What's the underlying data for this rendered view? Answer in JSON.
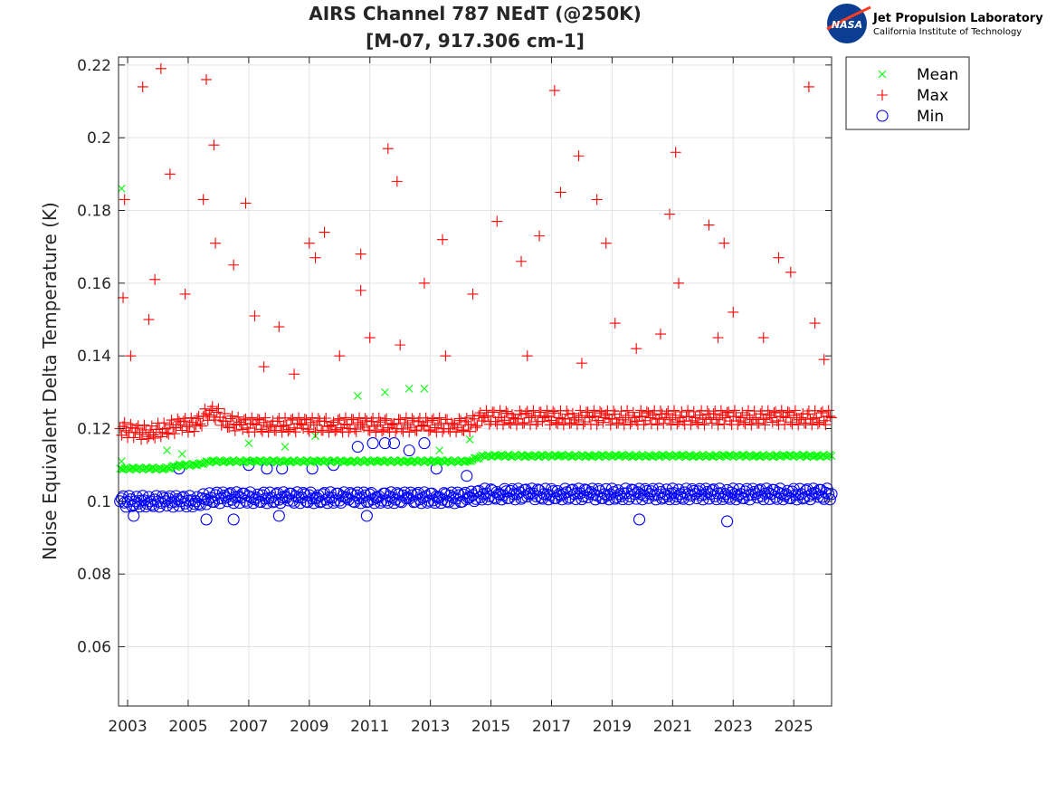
{
  "logo": {
    "org": "Jet Propulsion Laboratory",
    "sub": "California Institute of Technology",
    "badge": "NASA"
  },
  "chart_data": {
    "type": "scatter",
    "title": [
      "AIRS Channel 787 NEdT (@250K)",
      "[M-07, 917.306 cm-1]"
    ],
    "xlabel": "",
    "ylabel": "Noise Equivalent Delta Temperature (K)",
    "xlim": [
      2002.7,
      2026.25
    ],
    "ylim": [
      0.0437,
      0.2222
    ],
    "xticks": [
      2003,
      2005,
      2007,
      2009,
      2011,
      2013,
      2015,
      2017,
      2019,
      2021,
      2023,
      2025
    ],
    "yticks": [
      0.06,
      0.08,
      0.1,
      0.12,
      0.14,
      0.16,
      0.18,
      0.2,
      0.22
    ],
    "ytick_labels": [
      "0.06",
      "0.08",
      "0.1",
      "0.12",
      "0.14",
      "0.16",
      "0.18",
      "0.2",
      "0.22"
    ],
    "grid": true,
    "legend_placement": "outside-top-right",
    "series": [
      {
        "name": "Mean",
        "marker": "x",
        "color": "#00ff00",
        "points": [
          [
            2002.75,
            0.109
          ],
          [
            2003.25,
            0.109
          ],
          [
            2003.75,
            0.109
          ],
          [
            2004.25,
            0.109
          ],
          [
            2004.75,
            0.11
          ],
          [
            2005.25,
            0.11
          ],
          [
            2005.75,
            0.111
          ],
          [
            2006.25,
            0.111
          ],
          [
            2006.75,
            0.111
          ],
          [
            2007.25,
            0.111
          ],
          [
            2007.75,
            0.111
          ],
          [
            2008.25,
            0.111
          ],
          [
            2008.75,
            0.111
          ],
          [
            2009.25,
            0.111
          ],
          [
            2009.75,
            0.111
          ],
          [
            2010.25,
            0.111
          ],
          [
            2010.75,
            0.111
          ],
          [
            2011.25,
            0.111
          ],
          [
            2011.75,
            0.111
          ],
          [
            2012.25,
            0.111
          ],
          [
            2012.75,
            0.111
          ],
          [
            2013.25,
            0.111
          ],
          [
            2013.75,
            0.111
          ],
          [
            2014.25,
            0.111
          ],
          [
            2014.75,
            0.1125
          ],
          [
            2015.25,
            0.1125
          ],
          [
            2015.75,
            0.1125
          ],
          [
            2016.25,
            0.1125
          ],
          [
            2016.75,
            0.1125
          ],
          [
            2017.25,
            0.1125
          ],
          [
            2017.75,
            0.1125
          ],
          [
            2018.25,
            0.1125
          ],
          [
            2018.75,
            0.1125
          ],
          [
            2019.25,
            0.1125
          ],
          [
            2019.75,
            0.1125
          ],
          [
            2020.25,
            0.1125
          ],
          [
            2020.75,
            0.1125
          ],
          [
            2021.25,
            0.1125
          ],
          [
            2021.75,
            0.1125
          ],
          [
            2022.25,
            0.1125
          ],
          [
            2022.75,
            0.1125
          ],
          [
            2023.25,
            0.1125
          ],
          [
            2023.75,
            0.1125
          ],
          [
            2024.25,
            0.1125
          ],
          [
            2024.75,
            0.1125
          ],
          [
            2025.25,
            0.1125
          ],
          [
            2025.75,
            0.1125
          ],
          [
            2026.25,
            0.1125
          ],
          [
            2002.8,
            0.186
          ],
          [
            2002.8,
            0.111
          ],
          [
            2004.3,
            0.114
          ],
          [
            2004.8,
            0.113
          ],
          [
            2007.0,
            0.116
          ],
          [
            2008.2,
            0.115
          ],
          [
            2009.2,
            0.118
          ],
          [
            2010.6,
            0.129
          ],
          [
            2011.5,
            0.13
          ],
          [
            2012.3,
            0.131
          ],
          [
            2012.8,
            0.131
          ],
          [
            2013.3,
            0.114
          ],
          [
            2014.3,
            0.117
          ]
        ]
      },
      {
        "name": "Max",
        "marker": "+",
        "color": "#ff0000",
        "points": [
          [
            2002.75,
            0.12
          ],
          [
            2003.25,
            0.119
          ],
          [
            2003.75,
            0.119
          ],
          [
            2004.25,
            0.12
          ],
          [
            2004.75,
            0.121
          ],
          [
            2005.25,
            0.121
          ],
          [
            2005.75,
            0.125
          ],
          [
            2006.25,
            0.122
          ],
          [
            2006.75,
            0.121
          ],
          [
            2007.25,
            0.121
          ],
          [
            2007.75,
            0.121
          ],
          [
            2008.25,
            0.121
          ],
          [
            2008.75,
            0.121
          ],
          [
            2009.25,
            0.121
          ],
          [
            2009.75,
            0.121
          ],
          [
            2010.25,
            0.121
          ],
          [
            2010.75,
            0.121
          ],
          [
            2011.25,
            0.121
          ],
          [
            2011.75,
            0.121
          ],
          [
            2012.25,
            0.121
          ],
          [
            2012.75,
            0.121
          ],
          [
            2013.25,
            0.121
          ],
          [
            2013.75,
            0.121
          ],
          [
            2014.25,
            0.121
          ],
          [
            2014.75,
            0.123
          ],
          [
            2015.25,
            0.123
          ],
          [
            2015.75,
            0.123
          ],
          [
            2016.25,
            0.123
          ],
          [
            2016.75,
            0.123
          ],
          [
            2017.25,
            0.123
          ],
          [
            2017.75,
            0.123
          ],
          [
            2018.25,
            0.123
          ],
          [
            2018.75,
            0.123
          ],
          [
            2019.25,
            0.123
          ],
          [
            2019.75,
            0.123
          ],
          [
            2020.25,
            0.123
          ],
          [
            2020.75,
            0.123
          ],
          [
            2021.25,
            0.123
          ],
          [
            2021.75,
            0.123
          ],
          [
            2022.25,
            0.123
          ],
          [
            2022.75,
            0.123
          ],
          [
            2023.25,
            0.123
          ],
          [
            2023.75,
            0.123
          ],
          [
            2024.25,
            0.123
          ],
          [
            2024.75,
            0.123
          ],
          [
            2025.25,
            0.123
          ],
          [
            2025.75,
            0.123
          ],
          [
            2026.25,
            0.123
          ],
          [
            2002.85,
            0.156
          ],
          [
            2002.9,
            0.183
          ],
          [
            2003.1,
            0.14
          ],
          [
            2003.5,
            0.214
          ],
          [
            2003.7,
            0.15
          ],
          [
            2003.9,
            0.161
          ],
          [
            2004.1,
            0.219
          ],
          [
            2004.4,
            0.19
          ],
          [
            2004.9,
            0.157
          ],
          [
            2005.5,
            0.183
          ],
          [
            2005.6,
            0.216
          ],
          [
            2005.85,
            0.198
          ],
          [
            2005.9,
            0.171
          ],
          [
            2006.5,
            0.165
          ],
          [
            2006.9,
            0.182
          ],
          [
            2007.2,
            0.151
          ],
          [
            2008.0,
            0.148
          ],
          [
            2009.0,
            0.171
          ],
          [
            2009.2,
            0.167
          ],
          [
            2009.5,
            0.174
          ],
          [
            2010.7,
            0.168
          ],
          [
            2010.7,
            0.158
          ],
          [
            2011.6,
            0.197
          ],
          [
            2011.9,
            0.188
          ],
          [
            2012.8,
            0.16
          ],
          [
            2013.4,
            0.172
          ],
          [
            2014.4,
            0.157
          ],
          [
            2015.2,
            0.177
          ],
          [
            2016.0,
            0.166
          ],
          [
            2016.6,
            0.173
          ],
          [
            2017.1,
            0.213
          ],
          [
            2017.3,
            0.185
          ],
          [
            2017.9,
            0.195
          ],
          [
            2018.5,
            0.183
          ],
          [
            2018.8,
            0.171
          ],
          [
            2019.1,
            0.149
          ],
          [
            2020.9,
            0.179
          ],
          [
            2021.1,
            0.196
          ],
          [
            2021.2,
            0.16
          ],
          [
            2022.2,
            0.176
          ],
          [
            2022.7,
            0.171
          ],
          [
            2023.0,
            0.152
          ],
          [
            2024.5,
            0.167
          ],
          [
            2024.9,
            0.163
          ],
          [
            2025.5,
            0.214
          ],
          [
            2025.7,
            0.149
          ],
          [
            2026.0,
            0.139
          ],
          [
            2007.5,
            0.137
          ],
          [
            2008.5,
            0.135
          ],
          [
            2010.0,
            0.14
          ],
          [
            2011.0,
            0.145
          ],
          [
            2012.0,
            0.143
          ],
          [
            2013.5,
            0.14
          ],
          [
            2016.2,
            0.14
          ],
          [
            2018.0,
            0.138
          ],
          [
            2019.8,
            0.142
          ],
          [
            2020.6,
            0.146
          ],
          [
            2022.5,
            0.145
          ],
          [
            2024.0,
            0.145
          ]
        ]
      },
      {
        "name": "Min",
        "marker": "o",
        "color": "#0000ff",
        "points": [
          [
            2002.75,
            0.1
          ],
          [
            2003.25,
            0.1
          ],
          [
            2003.75,
            0.1
          ],
          [
            2004.25,
            0.1
          ],
          [
            2004.75,
            0.1
          ],
          [
            2005.25,
            0.1
          ],
          [
            2005.75,
            0.101
          ],
          [
            2006.25,
            0.101
          ],
          [
            2006.75,
            0.101
          ],
          [
            2007.25,
            0.101
          ],
          [
            2007.75,
            0.101
          ],
          [
            2008.25,
            0.101
          ],
          [
            2008.75,
            0.101
          ],
          [
            2009.25,
            0.101
          ],
          [
            2009.75,
            0.101
          ],
          [
            2010.25,
            0.101
          ],
          [
            2010.75,
            0.101
          ],
          [
            2011.25,
            0.101
          ],
          [
            2011.75,
            0.101
          ],
          [
            2012.25,
            0.101
          ],
          [
            2012.75,
            0.101
          ],
          [
            2013.25,
            0.101
          ],
          [
            2013.75,
            0.101
          ],
          [
            2014.25,
            0.101
          ],
          [
            2014.75,
            0.102
          ],
          [
            2015.25,
            0.102
          ],
          [
            2015.75,
            0.102
          ],
          [
            2016.25,
            0.102
          ],
          [
            2016.75,
            0.102
          ],
          [
            2017.25,
            0.102
          ],
          [
            2017.75,
            0.102
          ],
          [
            2018.25,
            0.102
          ],
          [
            2018.75,
            0.102
          ],
          [
            2019.25,
            0.102
          ],
          [
            2019.75,
            0.102
          ],
          [
            2020.25,
            0.102
          ],
          [
            2020.75,
            0.102
          ],
          [
            2021.25,
            0.102
          ],
          [
            2021.75,
            0.102
          ],
          [
            2022.25,
            0.102
          ],
          [
            2022.75,
            0.102
          ],
          [
            2023.25,
            0.102
          ],
          [
            2023.75,
            0.102
          ],
          [
            2024.25,
            0.102
          ],
          [
            2024.75,
            0.102
          ],
          [
            2025.25,
            0.102
          ],
          [
            2025.75,
            0.102
          ],
          [
            2026.25,
            0.102
          ],
          [
            2004.7,
            0.109
          ],
          [
            2007.0,
            0.11
          ],
          [
            2007.6,
            0.109
          ],
          [
            2008.1,
            0.109
          ],
          [
            2009.1,
            0.109
          ],
          [
            2009.8,
            0.11
          ],
          [
            2010.6,
            0.115
          ],
          [
            2011.1,
            0.116
          ],
          [
            2011.5,
            0.116
          ],
          [
            2011.8,
            0.116
          ],
          [
            2012.3,
            0.114
          ],
          [
            2012.8,
            0.116
          ],
          [
            2013.2,
            0.109
          ],
          [
            2014.2,
            0.107
          ],
          [
            2003.2,
            0.096
          ],
          [
            2005.6,
            0.095
          ],
          [
            2006.5,
            0.095
          ],
          [
            2019.9,
            0.095
          ],
          [
            2022.8,
            0.0945
          ],
          [
            2008.0,
            0.096
          ],
          [
            2010.9,
            0.096
          ]
        ]
      }
    ]
  }
}
